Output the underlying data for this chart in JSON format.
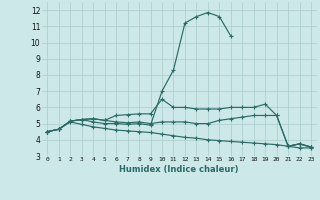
{
  "xlabel": "Humidex (Indice chaleur)",
  "background_color": "#cce8e8",
  "grid_color": "#aacccc",
  "line_color": "#2a6b65",
  "xlim": [
    -0.5,
    23.5
  ],
  "ylim": [
    3,
    12.5
  ],
  "yticks": [
    3,
    4,
    5,
    6,
    7,
    8,
    9,
    10,
    11,
    12
  ],
  "xticks": [
    0,
    1,
    2,
    3,
    4,
    5,
    6,
    7,
    8,
    9,
    10,
    11,
    12,
    13,
    14,
    15,
    16,
    17,
    18,
    19,
    20,
    21,
    22,
    23
  ],
  "series": [
    {
      "x": [
        0,
        1,
        2,
        3,
        4,
        5,
        6,
        7,
        8,
        9,
        10,
        11,
        12,
        13,
        14,
        15,
        16,
        17,
        18,
        19,
        20,
        21,
        22,
        23
      ],
      "y": [
        4.5,
        4.65,
        5.15,
        5.25,
        5.1,
        5.0,
        5.0,
        4.95,
        5.0,
        4.9,
        7.0,
        8.3,
        11.2,
        11.6,
        11.85,
        11.6,
        10.4,
        null,
        null,
        null,
        null,
        3.6,
        3.75,
        3.55
      ]
    },
    {
      "x": [
        0,
        1,
        2,
        3,
        4,
        5,
        6,
        7,
        8,
        9,
        10,
        11,
        12,
        13,
        14,
        15,
        16,
        17,
        18,
        19,
        20,
        21,
        22,
        23
      ],
      "y": [
        4.5,
        4.65,
        5.15,
        5.25,
        5.3,
        5.2,
        5.5,
        5.55,
        5.6,
        5.6,
        6.5,
        6.0,
        6.0,
        5.9,
        5.9,
        5.9,
        6.0,
        6.0,
        6.0,
        6.2,
        5.5,
        3.6,
        3.75,
        3.55
      ]
    },
    {
      "x": [
        0,
        1,
        2,
        3,
        4,
        5,
        6,
        7,
        8,
        9,
        10,
        11,
        12,
        13,
        14,
        15,
        16,
        17,
        18,
        19,
        20,
        21,
        22,
        23
      ],
      "y": [
        4.5,
        4.65,
        5.15,
        5.25,
        5.3,
        5.2,
        5.1,
        5.05,
        5.1,
        5.0,
        5.1,
        5.1,
        5.1,
        5.0,
        5.0,
        5.2,
        5.3,
        5.4,
        5.5,
        5.5,
        5.5,
        3.6,
        3.75,
        3.55
      ]
    },
    {
      "x": [
        0,
        1,
        2,
        3,
        4,
        5,
        6,
        7,
        8,
        9,
        10,
        11,
        12,
        13,
        14,
        15,
        16,
        17,
        18,
        19,
        20,
        21,
        22,
        23
      ],
      "y": [
        4.5,
        4.65,
        5.1,
        4.95,
        4.8,
        4.7,
        4.6,
        4.55,
        4.5,
        4.45,
        4.35,
        4.25,
        4.15,
        4.1,
        4.0,
        3.95,
        3.9,
        3.85,
        3.8,
        3.75,
        3.7,
        3.6,
        3.5,
        3.5
      ]
    }
  ]
}
